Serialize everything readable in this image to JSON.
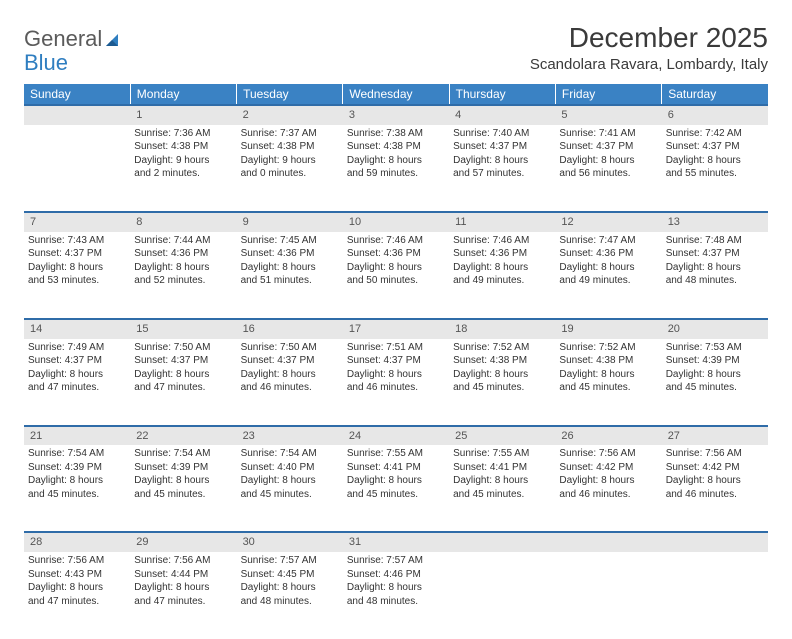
{
  "logo": {
    "word1": "General",
    "word2": "Blue"
  },
  "title": "December 2025",
  "location": "Scandolara Ravara, Lombardy, Italy",
  "colors": {
    "header_bg": "#3a82c4",
    "row_divider": "#2f6ca8",
    "daynum_bg": "#e7e7e7",
    "text": "#333333",
    "logo_gray": "#5b5b5b",
    "logo_blue": "#2f7ec0"
  },
  "days_of_week": [
    "Sunday",
    "Monday",
    "Tuesday",
    "Wednesday",
    "Thursday",
    "Friday",
    "Saturday"
  ],
  "weeks": [
    {
      "nums": [
        "",
        "1",
        "2",
        "3",
        "4",
        "5",
        "6"
      ],
      "cells": [
        null,
        {
          "sunrise": "Sunrise: 7:36 AM",
          "sunset": "Sunset: 4:38 PM",
          "day1": "Daylight: 9 hours",
          "day2": "and 2 minutes."
        },
        {
          "sunrise": "Sunrise: 7:37 AM",
          "sunset": "Sunset: 4:38 PM",
          "day1": "Daylight: 9 hours",
          "day2": "and 0 minutes."
        },
        {
          "sunrise": "Sunrise: 7:38 AM",
          "sunset": "Sunset: 4:38 PM",
          "day1": "Daylight: 8 hours",
          "day2": "and 59 minutes."
        },
        {
          "sunrise": "Sunrise: 7:40 AM",
          "sunset": "Sunset: 4:37 PM",
          "day1": "Daylight: 8 hours",
          "day2": "and 57 minutes."
        },
        {
          "sunrise": "Sunrise: 7:41 AM",
          "sunset": "Sunset: 4:37 PM",
          "day1": "Daylight: 8 hours",
          "day2": "and 56 minutes."
        },
        {
          "sunrise": "Sunrise: 7:42 AM",
          "sunset": "Sunset: 4:37 PM",
          "day1": "Daylight: 8 hours",
          "day2": "and 55 minutes."
        }
      ]
    },
    {
      "nums": [
        "7",
        "8",
        "9",
        "10",
        "11",
        "12",
        "13"
      ],
      "cells": [
        {
          "sunrise": "Sunrise: 7:43 AM",
          "sunset": "Sunset: 4:37 PM",
          "day1": "Daylight: 8 hours",
          "day2": "and 53 minutes."
        },
        {
          "sunrise": "Sunrise: 7:44 AM",
          "sunset": "Sunset: 4:36 PM",
          "day1": "Daylight: 8 hours",
          "day2": "and 52 minutes."
        },
        {
          "sunrise": "Sunrise: 7:45 AM",
          "sunset": "Sunset: 4:36 PM",
          "day1": "Daylight: 8 hours",
          "day2": "and 51 minutes."
        },
        {
          "sunrise": "Sunrise: 7:46 AM",
          "sunset": "Sunset: 4:36 PM",
          "day1": "Daylight: 8 hours",
          "day2": "and 50 minutes."
        },
        {
          "sunrise": "Sunrise: 7:46 AM",
          "sunset": "Sunset: 4:36 PM",
          "day1": "Daylight: 8 hours",
          "day2": "and 49 minutes."
        },
        {
          "sunrise": "Sunrise: 7:47 AM",
          "sunset": "Sunset: 4:36 PM",
          "day1": "Daylight: 8 hours",
          "day2": "and 49 minutes."
        },
        {
          "sunrise": "Sunrise: 7:48 AM",
          "sunset": "Sunset: 4:37 PM",
          "day1": "Daylight: 8 hours",
          "day2": "and 48 minutes."
        }
      ]
    },
    {
      "nums": [
        "14",
        "15",
        "16",
        "17",
        "18",
        "19",
        "20"
      ],
      "cells": [
        {
          "sunrise": "Sunrise: 7:49 AM",
          "sunset": "Sunset: 4:37 PM",
          "day1": "Daylight: 8 hours",
          "day2": "and 47 minutes."
        },
        {
          "sunrise": "Sunrise: 7:50 AM",
          "sunset": "Sunset: 4:37 PM",
          "day1": "Daylight: 8 hours",
          "day2": "and 47 minutes."
        },
        {
          "sunrise": "Sunrise: 7:50 AM",
          "sunset": "Sunset: 4:37 PM",
          "day1": "Daylight: 8 hours",
          "day2": "and 46 minutes."
        },
        {
          "sunrise": "Sunrise: 7:51 AM",
          "sunset": "Sunset: 4:37 PM",
          "day1": "Daylight: 8 hours",
          "day2": "and 46 minutes."
        },
        {
          "sunrise": "Sunrise: 7:52 AM",
          "sunset": "Sunset: 4:38 PM",
          "day1": "Daylight: 8 hours",
          "day2": "and 45 minutes."
        },
        {
          "sunrise": "Sunrise: 7:52 AM",
          "sunset": "Sunset: 4:38 PM",
          "day1": "Daylight: 8 hours",
          "day2": "and 45 minutes."
        },
        {
          "sunrise": "Sunrise: 7:53 AM",
          "sunset": "Sunset: 4:39 PM",
          "day1": "Daylight: 8 hours",
          "day2": "and 45 minutes."
        }
      ]
    },
    {
      "nums": [
        "21",
        "22",
        "23",
        "24",
        "25",
        "26",
        "27"
      ],
      "cells": [
        {
          "sunrise": "Sunrise: 7:54 AM",
          "sunset": "Sunset: 4:39 PM",
          "day1": "Daylight: 8 hours",
          "day2": "and 45 minutes."
        },
        {
          "sunrise": "Sunrise: 7:54 AM",
          "sunset": "Sunset: 4:39 PM",
          "day1": "Daylight: 8 hours",
          "day2": "and 45 minutes."
        },
        {
          "sunrise": "Sunrise: 7:54 AM",
          "sunset": "Sunset: 4:40 PM",
          "day1": "Daylight: 8 hours",
          "day2": "and 45 minutes."
        },
        {
          "sunrise": "Sunrise: 7:55 AM",
          "sunset": "Sunset: 4:41 PM",
          "day1": "Daylight: 8 hours",
          "day2": "and 45 minutes."
        },
        {
          "sunrise": "Sunrise: 7:55 AM",
          "sunset": "Sunset: 4:41 PM",
          "day1": "Daylight: 8 hours",
          "day2": "and 45 minutes."
        },
        {
          "sunrise": "Sunrise: 7:56 AM",
          "sunset": "Sunset: 4:42 PM",
          "day1": "Daylight: 8 hours",
          "day2": "and 46 minutes."
        },
        {
          "sunrise": "Sunrise: 7:56 AM",
          "sunset": "Sunset: 4:42 PM",
          "day1": "Daylight: 8 hours",
          "day2": "and 46 minutes."
        }
      ]
    },
    {
      "nums": [
        "28",
        "29",
        "30",
        "31",
        "",
        "",
        ""
      ],
      "cells": [
        {
          "sunrise": "Sunrise: 7:56 AM",
          "sunset": "Sunset: 4:43 PM",
          "day1": "Daylight: 8 hours",
          "day2": "and 47 minutes."
        },
        {
          "sunrise": "Sunrise: 7:56 AM",
          "sunset": "Sunset: 4:44 PM",
          "day1": "Daylight: 8 hours",
          "day2": "and 47 minutes."
        },
        {
          "sunrise": "Sunrise: 7:57 AM",
          "sunset": "Sunset: 4:45 PM",
          "day1": "Daylight: 8 hours",
          "day2": "and 48 minutes."
        },
        {
          "sunrise": "Sunrise: 7:57 AM",
          "sunset": "Sunset: 4:46 PM",
          "day1": "Daylight: 8 hours",
          "day2": "and 48 minutes."
        },
        null,
        null,
        null
      ]
    }
  ]
}
